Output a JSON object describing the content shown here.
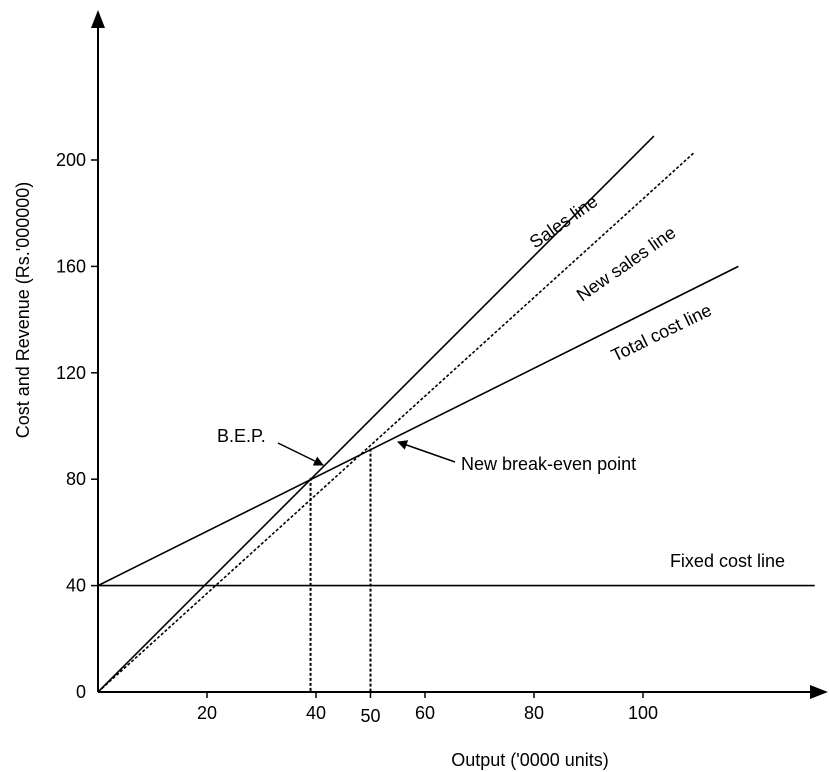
{
  "chart_data": {
    "type": "line",
    "xlabel": "Output ('0000 units)",
    "ylabel": "Cost and Revenue (Rs.'000000)",
    "xlim": [
      0,
      135
    ],
    "ylim": [
      0,
      255
    ],
    "x_ticks": [
      20,
      40,
      50,
      60,
      80,
      100
    ],
    "y_ticks": [
      0,
      40,
      80,
      120,
      160,
      200
    ],
    "grid": false,
    "series": [
      {
        "name": "Sales line",
        "style": "solid",
        "points": [
          [
            0,
            0
          ],
          [
            102,
            209
          ]
        ]
      },
      {
        "name": "New sales line",
        "style": "dotted",
        "points": [
          [
            0,
            0
          ],
          [
            109.5,
            203
          ]
        ]
      },
      {
        "name": "Total cost line",
        "style": "solid",
        "points": [
          [
            0,
            40
          ],
          [
            117.5,
            160
          ]
        ]
      },
      {
        "name": "Fixed cost line",
        "style": "solid",
        "points": [
          [
            0,
            40
          ],
          [
            131.5,
            40
          ]
        ]
      }
    ],
    "annotations": [
      {
        "text": "B.E.P.",
        "point": [
          39,
          80.5
        ]
      },
      {
        "text": "New break-even point",
        "point": [
          50,
          91.5
        ]
      }
    ],
    "drop_lines": [
      {
        "x": 39,
        "y": 80.5
      },
      {
        "x": 50,
        "y": 91.5
      }
    ]
  }
}
